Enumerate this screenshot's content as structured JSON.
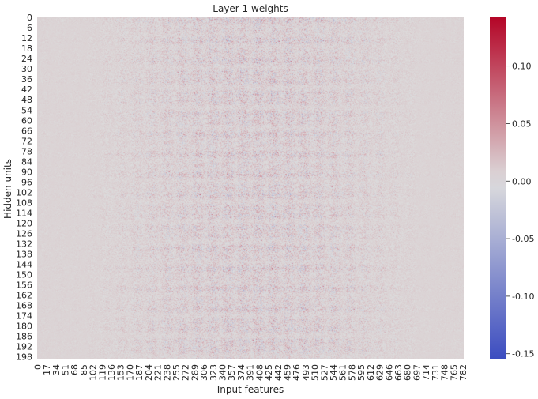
{
  "chart_data": {
    "type": "heatmap",
    "title": "Layer 1 weights",
    "xlabel": "Input features",
    "ylabel": "Hidden units",
    "rows": 200,
    "cols": 784,
    "colormap": "coolwarm",
    "vmin": -0.155,
    "vmax": 0.143,
    "y_tick_labels": [
      "0",
      "6",
      "12",
      "18",
      "24",
      "30",
      "36",
      "42",
      "48",
      "54",
      "60",
      "66",
      "72",
      "78",
      "84",
      "90",
      "96",
      "102",
      "108",
      "114",
      "120",
      "126",
      "132",
      "138",
      "144",
      "150",
      "156",
      "162",
      "168",
      "174",
      "180",
      "186",
      "192",
      "198"
    ],
    "x_tick_labels": [
      "0",
      "17",
      "34",
      "51",
      "68",
      "85",
      "102",
      "119",
      "136",
      "153",
      "170",
      "187",
      "204",
      "221",
      "238",
      "255",
      "272",
      "289",
      "306",
      "323",
      "340",
      "357",
      "374",
      "391",
      "408",
      "425",
      "442",
      "459",
      "476",
      "493",
      "510",
      "527",
      "544",
      "561",
      "578",
      "595",
      "612",
      "629",
      "646",
      "663",
      "680",
      "697",
      "714",
      "731",
      "748",
      "765",
      "782"
    ],
    "colorbar_ticks": [
      {
        "value": 0.1,
        "label": "0.10"
      },
      {
        "value": 0.05,
        "label": "0.05"
      },
      {
        "value": 0.0,
        "label": "0.00"
      },
      {
        "value": -0.05,
        "label": "-0.05"
      },
      {
        "value": -0.1,
        "label": "-0.10"
      },
      {
        "value": -0.15,
        "label": "-0.15"
      }
    ]
  },
  "colors": {
    "low": "#3b4cc0",
    "mid": "#dddddd",
    "high": "#b40426",
    "text": "#262626"
  }
}
